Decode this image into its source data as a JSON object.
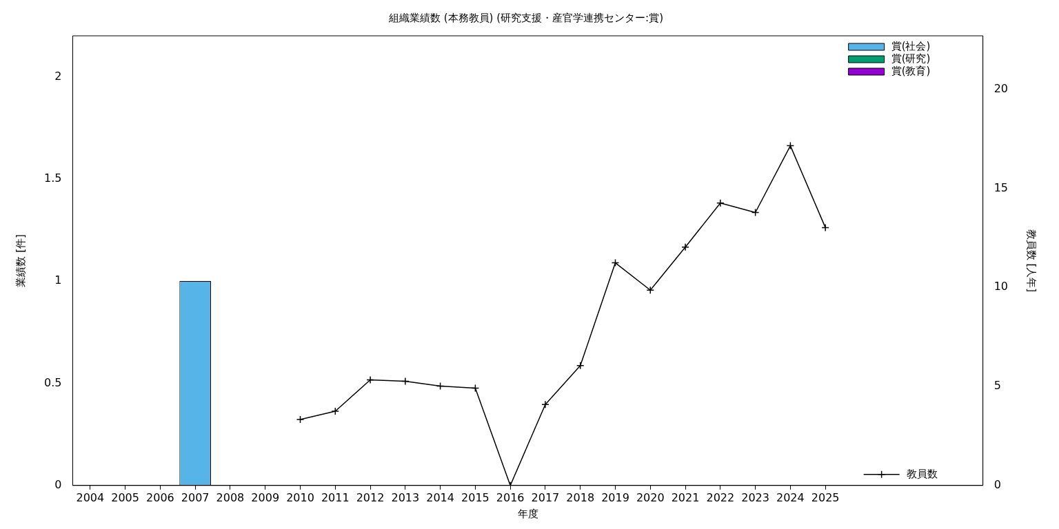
{
  "chart_data": {
    "type": "bar",
    "title": "組織業績数 (本務教員) (研究支援・産官学連携センター:賞)",
    "xlabel": "年度",
    "ylabel": "業績数 [件]",
    "y2label": "教員数 [人年]",
    "categories": [
      "2004",
      "2005",
      "2006",
      "2007",
      "2008",
      "2009",
      "2010",
      "2011",
      "2012",
      "2013",
      "2014",
      "2015",
      "2016",
      "2017",
      "2018",
      "2019",
      "2020",
      "2021",
      "2022",
      "2023",
      "2024",
      "2025",
      null,
      null,
      null,
      null
    ],
    "stacked": true,
    "legend": "right",
    "grid": false,
    "ylim": [
      0,
      2.2
    ],
    "yticks": [
      0,
      0.5,
      1,
      1.5,
      2
    ],
    "y2lim": [
      0,
      22.7
    ],
    "y2ticks": [
      0,
      5,
      10,
      15,
      20
    ],
    "series": [
      {
        "name": "賞(社会)",
        "color": "#56b4e9",
        "values": [
          0,
          0,
          0,
          1,
          0,
          0,
          0,
          0,
          0,
          0,
          0,
          0,
          0,
          0,
          0,
          0,
          0,
          0,
          0,
          0,
          0,
          0,
          null,
          null,
          null,
          null
        ]
      },
      {
        "name": "賞(研究)",
        "color": "#009e73",
        "values": [
          0,
          0,
          0,
          0,
          0,
          0,
          0,
          0,
          0,
          0,
          0,
          0,
          0,
          0,
          0,
          0,
          0,
          0,
          0,
          0,
          0,
          0,
          null,
          null,
          null,
          null
        ]
      },
      {
        "name": "賞(教育)",
        "color": "#9400d3",
        "values": [
          0,
          0,
          0,
          0,
          0,
          0,
          0,
          0,
          0,
          0,
          0,
          0,
          0,
          0,
          0,
          0,
          0,
          0,
          0,
          0,
          0,
          0,
          null,
          null,
          null,
          null
        ]
      },
      {
        "name": "教員数",
        "type": "line",
        "axis": "y2",
        "color": "#000000",
        "marker": "cross",
        "line_style": "solid",
        "values": [
          null,
          null,
          null,
          null,
          null,
          null,
          3.33,
          3.75,
          5.33,
          5.26,
          5.02,
          4.91,
          0,
          4.09,
          6.05,
          11.24,
          9.86,
          12.03,
          14.26,
          13.78,
          17.15,
          13.02,
          null,
          null,
          null,
          null
        ]
      }
    ]
  }
}
